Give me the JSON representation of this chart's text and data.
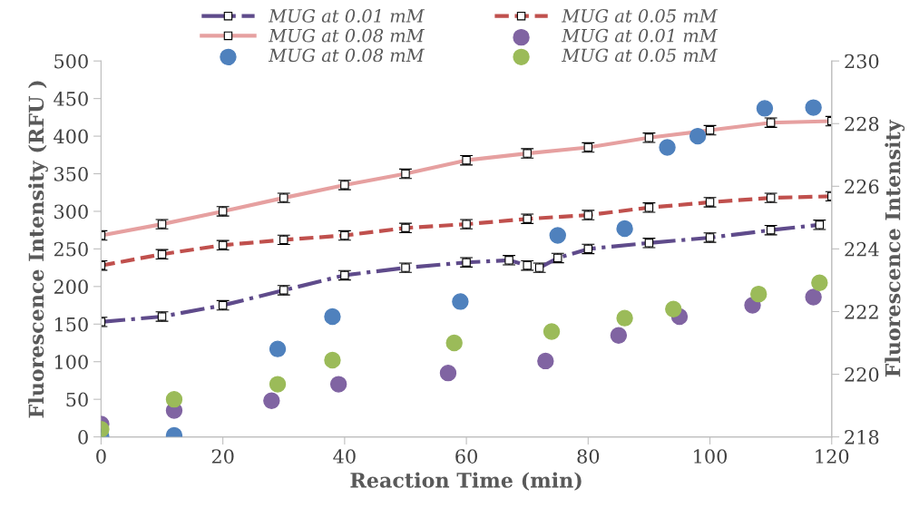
{
  "chart_data": {
    "type": "line",
    "xlabel": "Reaction Time (min)",
    "ylabel": "Fluorescence Intensity (RFU )",
    "y2label": "Fluorescence Intensity",
    "xlim": [
      0,
      120
    ],
    "xticks": [
      0,
      20,
      40,
      60,
      80,
      100,
      120
    ],
    "ylim": [
      0,
      500
    ],
    "yticks": [
      0,
      50,
      100,
      150,
      200,
      250,
      300,
      350,
      400,
      450,
      500
    ],
    "y2lim": [
      218,
      230
    ],
    "y2ticks": [
      218,
      220,
      222,
      224,
      226,
      228,
      230
    ],
    "grid": false,
    "legend": "top",
    "series": [
      {
        "name": "MUG at 0.01 mM",
        "axis": "y2",
        "color": "#5f4b8b",
        "line_style": "dashdot",
        "marker": "square",
        "x": [
          0,
          10,
          20,
          30,
          40,
          50,
          60,
          67,
          70,
          72,
          75,
          80,
          90,
          100,
          110,
          118
        ],
        "values": [
          221.67,
          221.84,
          222.2,
          222.68,
          223.16,
          223.4,
          223.57,
          223.64,
          223.47,
          223.4,
          223.71,
          224.0,
          224.19,
          224.36,
          224.6,
          224.77
        ],
        "errors": [
          0.15,
          0.15,
          0.15,
          0.15,
          0.15,
          0.15,
          0.15,
          0.15,
          0.15,
          0.15,
          0.15,
          0.15,
          0.15,
          0.15,
          0.15,
          0.15
        ]
      },
      {
        "name": "MUG at 0.05 mM",
        "axis": "y2",
        "color": "#c0504d",
        "line_style": "dashed",
        "marker": "square",
        "x": [
          0,
          10,
          20,
          30,
          40,
          50,
          60,
          70,
          80,
          90,
          100,
          110,
          120
        ],
        "values": [
          223.47,
          223.83,
          224.12,
          224.29,
          224.43,
          224.67,
          224.79,
          224.96,
          225.08,
          225.32,
          225.49,
          225.63,
          225.68
        ],
        "errors": [
          0.15,
          0.15,
          0.15,
          0.15,
          0.15,
          0.15,
          0.15,
          0.15,
          0.15,
          0.15,
          0.15,
          0.15,
          0.15
        ]
      },
      {
        "name": "MUG at 0.08 mM",
        "axis": "y2",
        "color": "#e6a0a0",
        "line_style": "solid",
        "marker": "square",
        "x": [
          0,
          10,
          20,
          30,
          40,
          50,
          60,
          70,
          80,
          90,
          100,
          110,
          120
        ],
        "values": [
          224.43,
          224.79,
          225.2,
          225.63,
          226.04,
          226.4,
          226.83,
          227.05,
          227.24,
          227.55,
          227.79,
          228.03,
          228.08
        ],
        "errors": [
          0.15,
          0.15,
          0.15,
          0.15,
          0.15,
          0.15,
          0.15,
          0.15,
          0.15,
          0.15,
          0.15,
          0.15,
          0.15
        ]
      },
      {
        "name": "MUG at 0.01 mM",
        "type": "scatter",
        "color": "#8064a2",
        "marker": "circle",
        "x": [
          0,
          12,
          28,
          39,
          57,
          73,
          85,
          95,
          107,
          117
        ],
        "values": [
          17,
          35,
          48,
          70,
          85,
          101,
          135,
          160,
          175,
          186
        ]
      },
      {
        "name": "MUG at 0.08 mM",
        "type": "scatter",
        "color": "#4f81bd",
        "marker": "circle",
        "x": [
          0,
          12,
          29,
          38,
          59,
          75,
          86,
          93,
          98,
          109,
          117
        ],
        "values": [
          0,
          2,
          117,
          160,
          180,
          268,
          277,
          385,
          400,
          437,
          438
        ]
      },
      {
        "name": "MUG at 0.05 mM",
        "type": "scatter",
        "color": "#9bbb59",
        "marker": "circle",
        "x": [
          0,
          12,
          29,
          38,
          58,
          74,
          86,
          94,
          108,
          118
        ],
        "values": [
          10,
          50,
          70,
          102,
          125,
          140,
          158,
          170,
          190,
          205
        ]
      }
    ]
  }
}
